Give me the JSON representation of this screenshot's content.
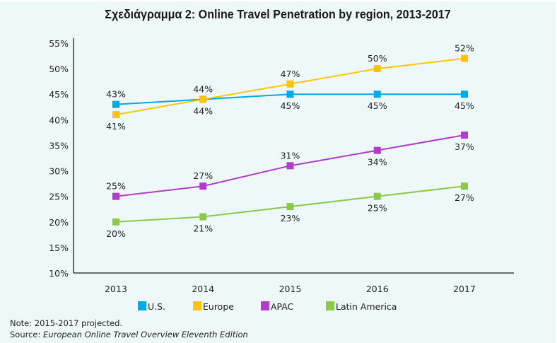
{
  "chart_data": {
    "type": "line",
    "title": "Σχεδιάγραμμα 2: Online Travel Penetration by region, 2013-2017",
    "xlabel": "",
    "ylabel": "",
    "categories": [
      "2013",
      "2014",
      "2015",
      "2016",
      "2017"
    ],
    "ylim": [
      10,
      55
    ],
    "yticks": [
      10,
      15,
      20,
      25,
      30,
      35,
      40,
      45,
      50,
      55
    ],
    "ytick_labels": [
      "10%",
      "15%",
      "20%",
      "25%",
      "30%",
      "35%",
      "40%",
      "45%",
      "50%",
      "55%"
    ],
    "grid": false,
    "legend_position": "bottom",
    "series": [
      {
        "name": "U.S.",
        "color": "#00a9e6",
        "values": [
          43,
          44,
          45,
          45,
          45
        ],
        "labels": [
          "43%",
          "44%",
          "45%",
          "45%",
          "45%"
        ],
        "label_positions": [
          "above",
          "above",
          "below",
          "below",
          "below"
        ]
      },
      {
        "name": "Europe",
        "color": "#ffc40a",
        "values": [
          41,
          44,
          47,
          50,
          52
        ],
        "labels": [
          "41%",
          "44%",
          "47%",
          "50%",
          "52%"
        ],
        "label_positions": [
          "below",
          "below",
          "above",
          "above",
          "above"
        ]
      },
      {
        "name": "APAC",
        "color": "#b13bcb",
        "values": [
          25,
          27,
          31,
          34,
          37
        ],
        "labels": [
          "25%",
          "27%",
          "31%",
          "34%",
          "37%"
        ],
        "label_positions": [
          "above",
          "above",
          "above",
          "below",
          "below"
        ]
      },
      {
        "name": "Latin America",
        "color": "#8bc94a",
        "values": [
          20,
          21,
          23,
          25,
          27
        ],
        "labels": [
          "20%",
          "21%",
          "23%",
          "25%",
          "27%"
        ],
        "label_positions": [
          "below",
          "below",
          "below",
          "below",
          "below"
        ]
      }
    ]
  },
  "footnotes": {
    "note": "Note: 2015-2017 projected.",
    "source_prefix": "Source: ",
    "source_work": "European Online Travel Overview Eleventh Edition"
  }
}
